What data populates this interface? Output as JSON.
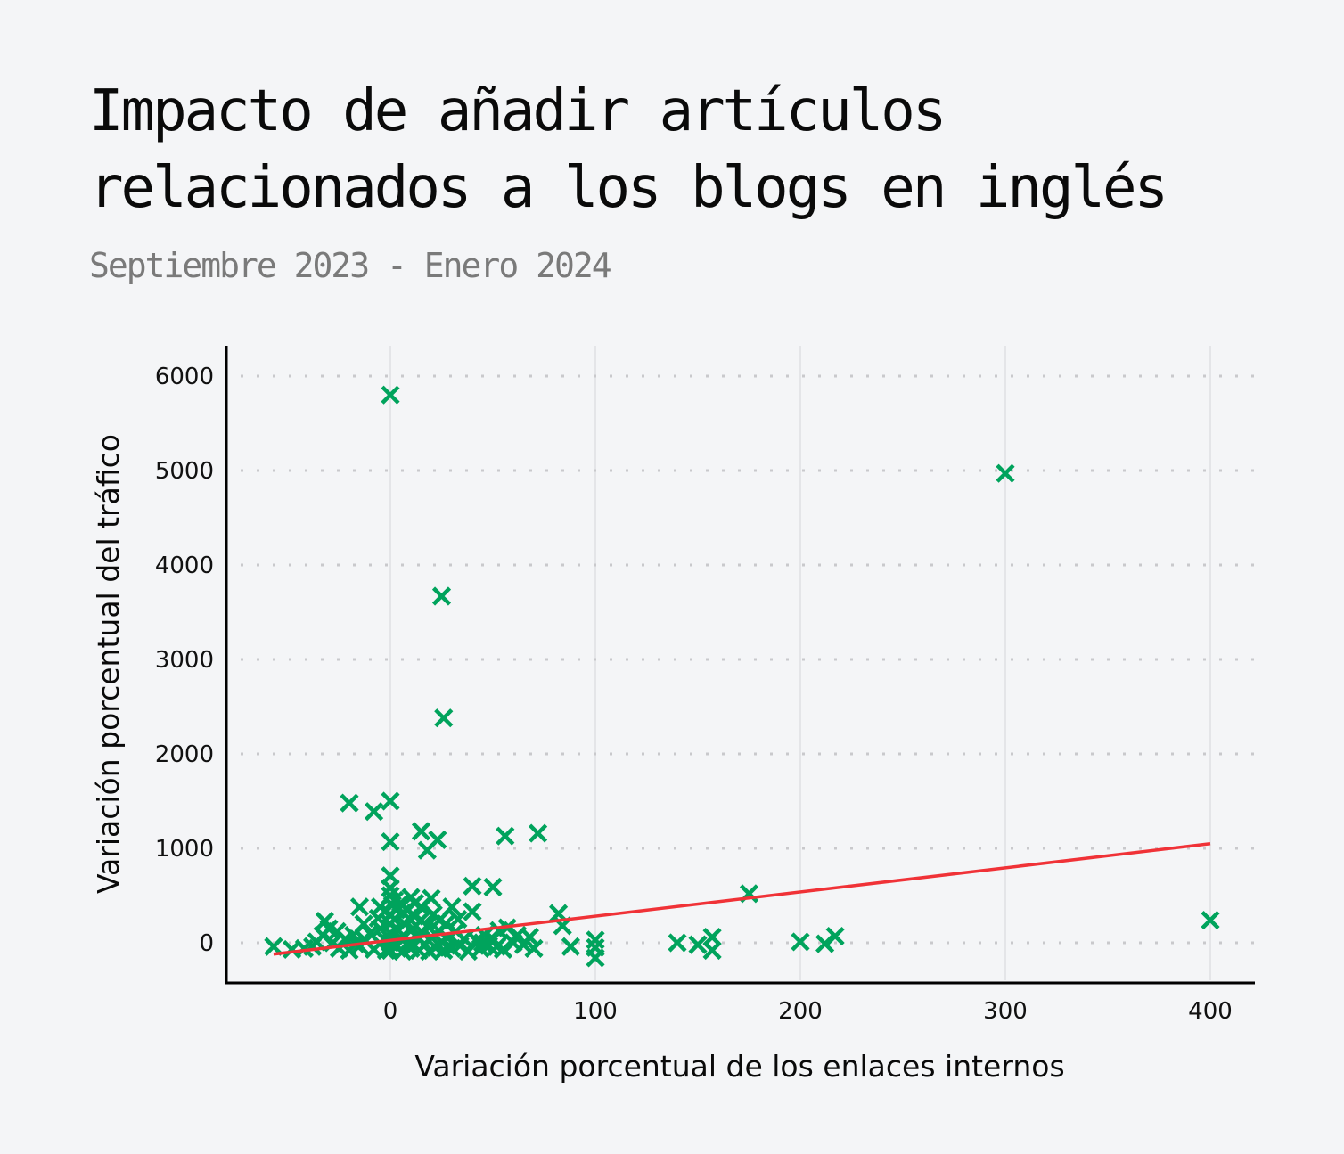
{
  "title": "Impacto de añadir artículos relacionados a los blogs en inglés",
  "subtitle": "Septiembre 2023 - Enero 2024",
  "chart_data": {
    "type": "scatter",
    "xlabel": "Variación porcentual de los enlaces internos",
    "ylabel": "Variación porcentual del tráfico",
    "xlim": [
      -80,
      420
    ],
    "ylim": [
      -450,
      6300
    ],
    "xticks": [
      "0",
      "100",
      "200",
      "300",
      "400"
    ],
    "yticks": [
      "0",
      "1000",
      "2000",
      "3000",
      "4000",
      "5000",
      "6000"
    ],
    "grid": "dotted horizontal, light vertical",
    "colors": {
      "points": "#00a35c",
      "trend": "#f03237"
    },
    "trendline": {
      "x": [
        -57,
        400
      ],
      "y": [
        -120,
        1050
      ]
    },
    "points": [
      [
        0,
        5800
      ],
      [
        300,
        4970
      ],
      [
        25,
        3670
      ],
      [
        26,
        2380
      ],
      [
        -20,
        1480
      ],
      [
        -8,
        1390
      ],
      [
        0,
        1500
      ],
      [
        0,
        1070
      ],
      [
        15,
        1180
      ],
      [
        23,
        1090
      ],
      [
        18,
        980
      ],
      [
        56,
        1130
      ],
      [
        72,
        1160
      ],
      [
        175,
        520
      ],
      [
        400,
        240
      ],
      [
        82,
        310
      ],
      [
        84,
        180
      ],
      [
        100,
        30
      ],
      [
        100,
        -50
      ],
      [
        100,
        -160
      ],
      [
        88,
        -40
      ],
      [
        140,
        0
      ],
      [
        150,
        -20
      ],
      [
        157,
        60
      ],
      [
        157,
        -80
      ],
      [
        200,
        10
      ],
      [
        212,
        -10
      ],
      [
        217,
        70
      ],
      [
        40,
        600
      ],
      [
        50,
        590
      ],
      [
        40,
        330
      ],
      [
        30,
        380
      ],
      [
        -15,
        380
      ],
      [
        -5,
        380
      ],
      [
        0,
        710
      ],
      [
        0,
        580
      ],
      [
        0,
        500
      ],
      [
        2,
        450
      ],
      [
        5,
        420
      ],
      [
        10,
        480
      ],
      [
        20,
        470
      ],
      [
        -32,
        230
      ],
      [
        -30,
        150
      ],
      [
        -33,
        80
      ],
      [
        -57,
        -40
      ],
      [
        -48,
        -70
      ],
      [
        -42,
        -60
      ],
      [
        -38,
        -40
      ],
      [
        -28,
        0
      ],
      [
        -25,
        -60
      ],
      [
        -22,
        40
      ],
      [
        -18,
        80
      ],
      [
        -15,
        -30
      ],
      [
        -12,
        20
      ],
      [
        -10,
        100
      ],
      [
        -8,
        -70
      ],
      [
        -5,
        150
      ],
      [
        -3,
        40
      ],
      [
        -2,
        -80
      ],
      [
        0,
        300
      ],
      [
        0,
        200
      ],
      [
        0,
        100
      ],
      [
        0,
        0
      ],
      [
        0,
        -80
      ],
      [
        2,
        250
      ],
      [
        3,
        -40
      ],
      [
        4,
        130
      ],
      [
        5,
        50
      ],
      [
        6,
        -90
      ],
      [
        7,
        200
      ],
      [
        8,
        350
      ],
      [
        9,
        10
      ],
      [
        10,
        -60
      ],
      [
        11,
        150
      ],
      [
        12,
        280
      ],
      [
        13,
        60
      ],
      [
        14,
        -80
      ],
      [
        15,
        240
      ],
      [
        16,
        100
      ],
      [
        17,
        -20
      ],
      [
        18,
        180
      ],
      [
        19,
        -90
      ],
      [
        20,
        60
      ],
      [
        21,
        300
      ],
      [
        22,
        -50
      ],
      [
        24,
        120
      ],
      [
        25,
        10
      ],
      [
        26,
        -80
      ],
      [
        27,
        200
      ],
      [
        28,
        50
      ],
      [
        30,
        -60
      ],
      [
        32,
        120
      ],
      [
        34,
        -30
      ],
      [
        36,
        40
      ],
      [
        38,
        -90
      ],
      [
        42,
        20
      ],
      [
        44,
        -60
      ],
      [
        46,
        80
      ],
      [
        48,
        -30
      ],
      [
        50,
        40
      ],
      [
        53,
        130
      ],
      [
        55,
        -70
      ],
      [
        57,
        160
      ],
      [
        60,
        0
      ],
      [
        62,
        80
      ],
      [
        65,
        -20
      ],
      [
        70,
        -60
      ],
      [
        -36,
        10
      ],
      [
        -26,
        120
      ],
      [
        -20,
        -80
      ],
      [
        -6,
        260
      ],
      [
        1,
        400
      ],
      [
        3,
        350
      ],
      [
        6,
        320
      ],
      [
        9,
        260
      ],
      [
        12,
        420
      ],
      [
        15,
        380
      ],
      [
        -13,
        200
      ],
      [
        -17,
        -10
      ],
      [
        24,
        240
      ],
      [
        33,
        250
      ],
      [
        45,
        0
      ],
      [
        52,
        -40
      ],
      [
        68,
        60
      ]
    ]
  }
}
